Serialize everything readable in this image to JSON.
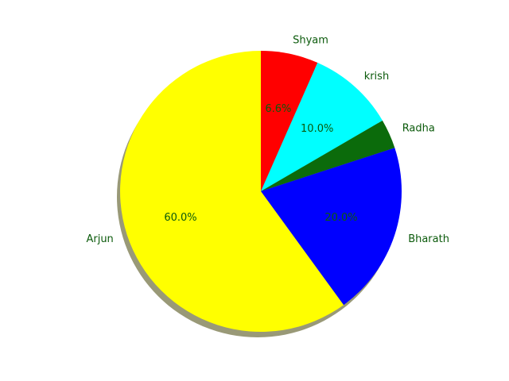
{
  "chart_data": {
    "type": "pie",
    "title": "",
    "start_angle_deg": 90,
    "direction": "clockwise",
    "shadow": true,
    "shadow_color": "#999977",
    "label_color": "#0b5a0b",
    "pct_color": "#0b5a0b",
    "slices": [
      {
        "label": "Shyam",
        "value": 6.6,
        "pct_label": "6.6%",
        "color": "#ff0000"
      },
      {
        "label": "krish",
        "value": 10.0,
        "pct_label": "10.0%",
        "color": "#00ffff"
      },
      {
        "label": "Radha",
        "value": 3.4,
        "pct_label": "",
        "color": "#0b6b0b"
      },
      {
        "label": "Bharath",
        "value": 20.0,
        "pct_label": "20.0%",
        "color": "#0000ff"
      },
      {
        "label": "Arjun",
        "value": 60.0,
        "pct_label": "60.0%",
        "color": "#ffff00"
      }
    ]
  }
}
